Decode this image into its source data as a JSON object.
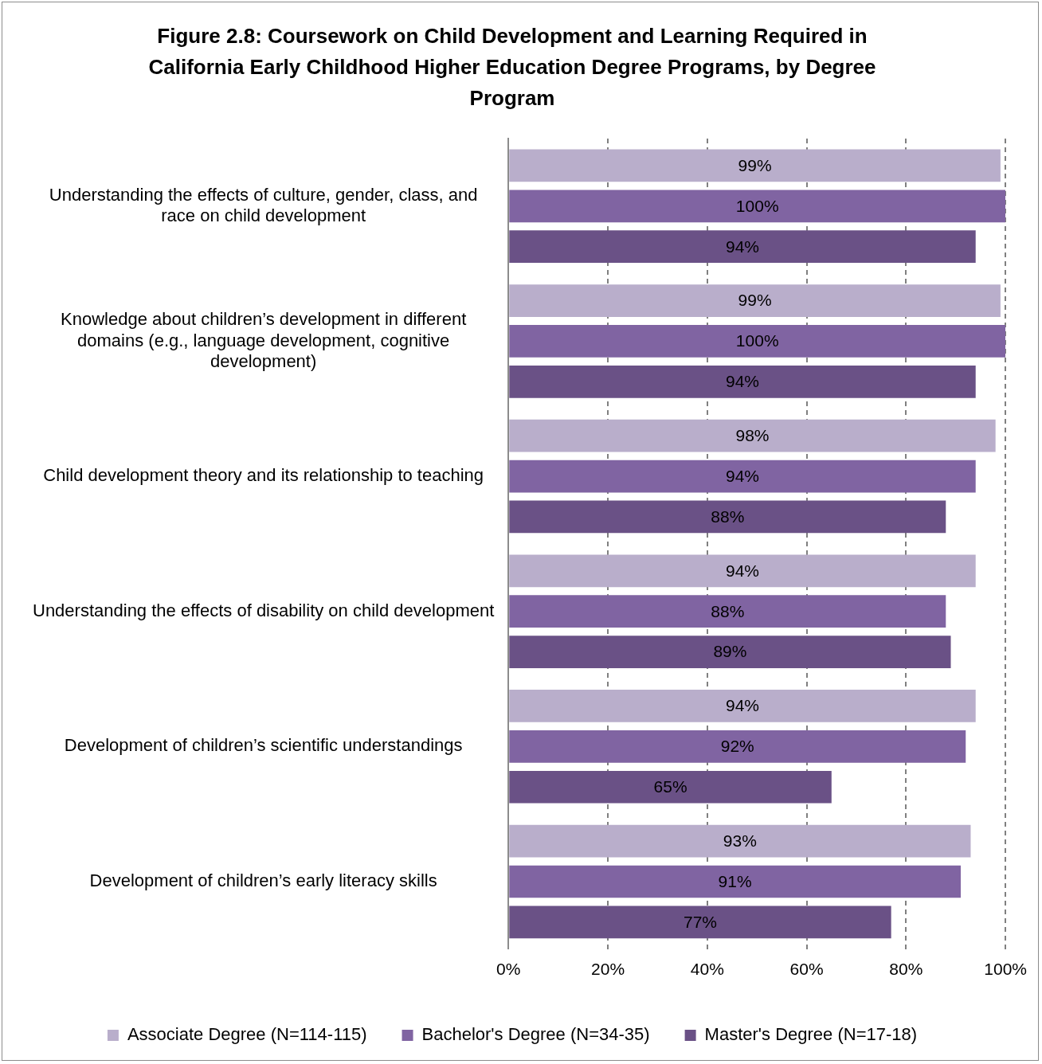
{
  "chart_data": {
    "type": "bar",
    "orientation": "horizontal",
    "title": "Figure 2.8: Coursework on Child Development and Learning Required in California Early Childhood Higher Education Degree Programs, by Degree Program",
    "categories": [
      "Understanding the effects of culture, gender, class, and race on child development",
      "Knowledge about children’s development in different domains (e.g., language development, cognitive development)",
      "Child development theory and its relationship to teaching",
      "Understanding the effects of disability on child development",
      "Development of children’s scientific understandings",
      "Development of children’s early literacy skills"
    ],
    "series": [
      {
        "name": "Associate Degree (N=114-115)",
        "color": "#b9aecb",
        "values": [
          99,
          99,
          98,
          94,
          94,
          93
        ],
        "value_labels": [
          "99%",
          "99%",
          "98%",
          "94%",
          "94%",
          "93%"
        ]
      },
      {
        "name": "Bachelor's Degree (N=34-35)",
        "color": "#8064a2",
        "values": [
          100,
          100,
          94,
          88,
          92,
          91
        ],
        "value_labels": [
          "100%",
          "100%",
          "94%",
          "88%",
          "92%",
          "91%"
        ]
      },
      {
        "name": "Master's Degree (N=17-18)",
        "color": "#6a5186",
        "values": [
          94,
          94,
          88,
          89,
          65,
          77
        ],
        "value_labels": [
          "94%",
          "94%",
          "88%",
          "89%",
          "65%",
          "77%"
        ]
      }
    ],
    "xlim": [
      0,
      100
    ],
    "xticks": [
      {
        "value": 0,
        "label": "0%"
      },
      {
        "value": 20,
        "label": "20%"
      },
      {
        "value": 40,
        "label": "40%"
      },
      {
        "value": 60,
        "label": "60%"
      },
      {
        "value": 80,
        "label": "80%"
      },
      {
        "value": 100,
        "label": "100%"
      }
    ],
    "grid": "x",
    "legend": "bottom"
  }
}
